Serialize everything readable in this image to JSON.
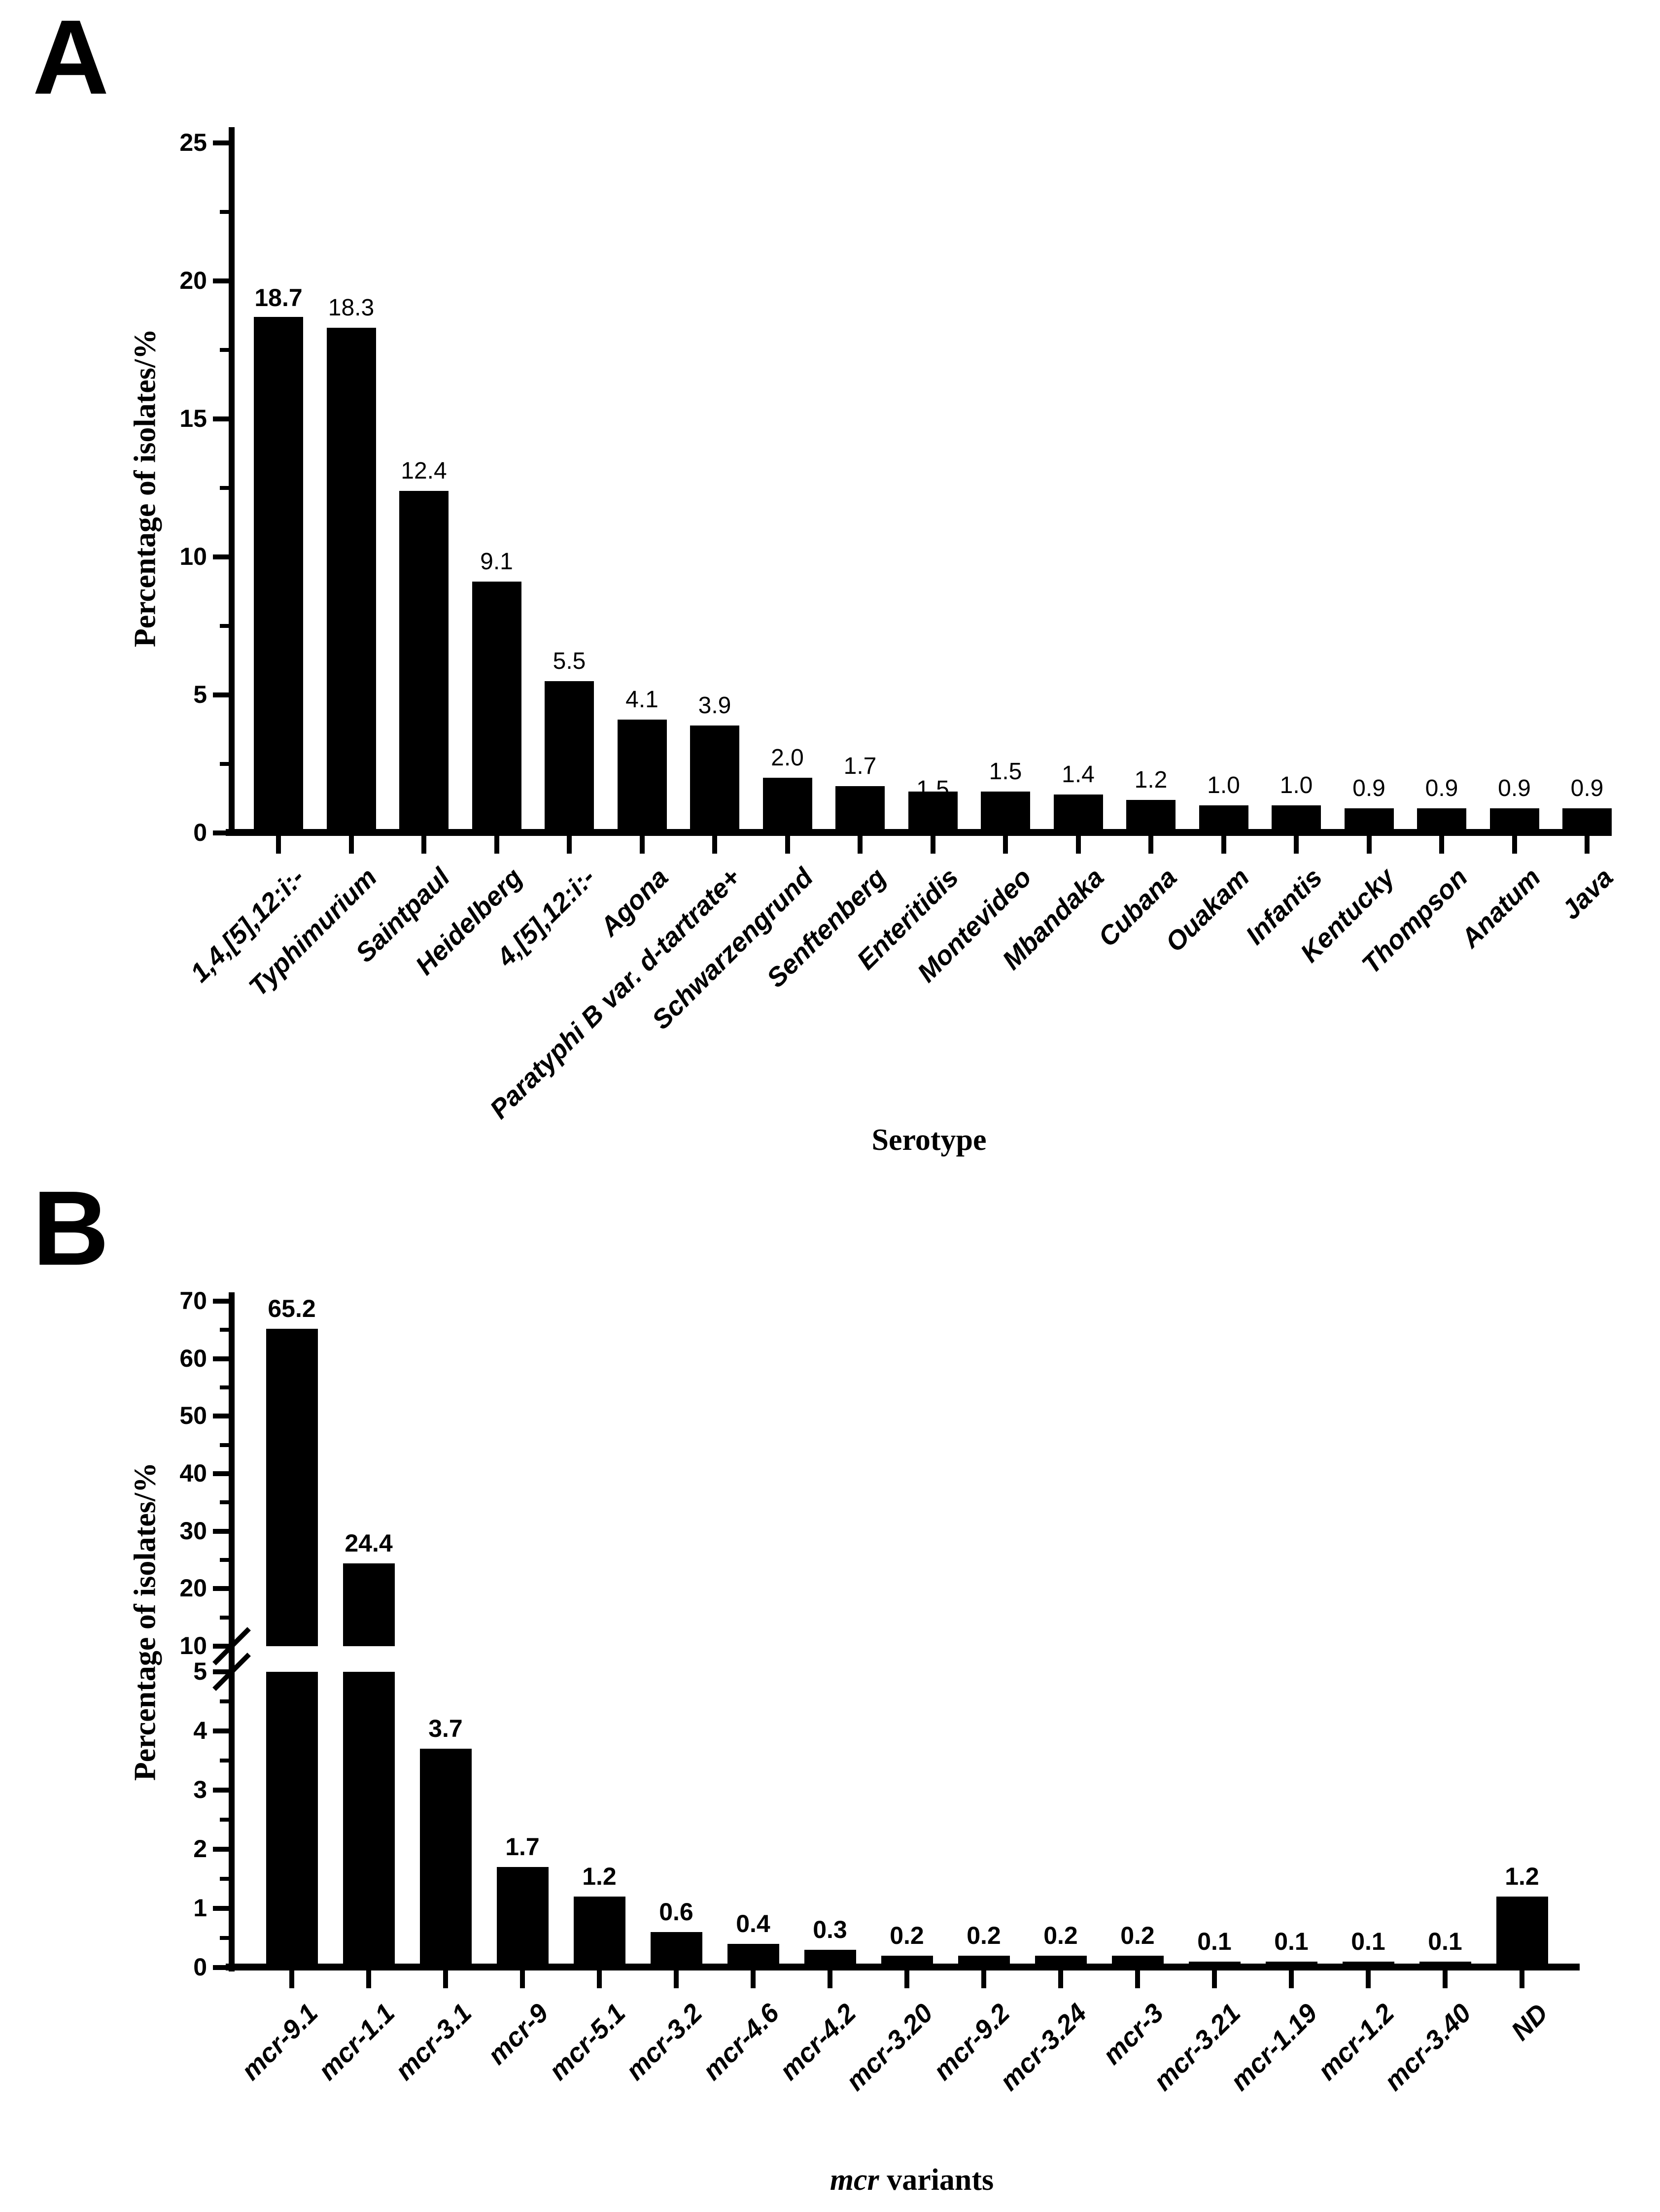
{
  "figure": {
    "background": "#ffffff",
    "bar_color": "#000000",
    "axis_color": "#000000",
    "text_color": "#000000"
  },
  "chart_data": [
    {
      "type": "bar",
      "panel_label": "A",
      "xlabel": "Serotype",
      "ylabel": "Percentage of isolates/%",
      "ylim": [
        0,
        25
      ],
      "yticks": [
        0,
        5,
        10,
        15,
        20,
        25
      ],
      "minor_tick_step": 2.5,
      "grid": false,
      "legend": false,
      "bar_color": "#000000",
      "categories": [
        "1,4,[5],12:i:-",
        "Typhimurium",
        "Saintpaul",
        "Heidelberg",
        "4,[5],12:i:-",
        "Agona",
        "Paratyphi B var. d-tartrate+",
        "Schwarzengrund",
        "Senftenberg",
        "Enteritidis",
        "Montevideo",
        "Mbandaka",
        "Cubana",
        "Ouakam",
        "Infantis",
        "Kentucky",
        "Thompson",
        "Anatum",
        "Java"
      ],
      "values": [
        18.7,
        18.3,
        12.4,
        9.1,
        5.5,
        4.1,
        3.9,
        2.0,
        1.7,
        1.5,
        1.5,
        1.4,
        1.2,
        1.0,
        1.0,
        0.9,
        0.9,
        0.9,
        0.9
      ],
      "value_labels": [
        "18.7",
        "18.3",
        "12.4",
        "9.1",
        "5.5",
        "4.1",
        "3.9",
        "2.0",
        "1.7",
        "1.5",
        "1.5",
        "1.4",
        "1.2",
        "1.0",
        "1.0",
        "0.9",
        "0.9",
        "0.9",
        "0.9"
      ],
      "bold_value_indices": [
        0
      ],
      "overlapped_value_indices": [
        9
      ]
    },
    {
      "type": "bar",
      "panel_label": "B",
      "xlabel_italic": "mcr",
      "xlabel_rest": " variants",
      "ylabel": "Percentage of isolates/%",
      "axis_break": {
        "lower_ylim": [
          0,
          5
        ],
        "upper_ylim": [
          10,
          70
        ],
        "lower_yticks": [
          0,
          1,
          2,
          3,
          4,
          5
        ],
        "upper_yticks": [
          10,
          20,
          30,
          40,
          50,
          60,
          70
        ],
        "lower_minor_step": 0.5,
        "upper_minor_step": 5
      },
      "grid": false,
      "legend": false,
      "bar_color": "#000000",
      "categories": [
        "mcr-9.1",
        "mcr-1.1",
        "mcr-3.1",
        "mcr-9",
        "mcr-5.1",
        "mcr-3.2",
        "mcr-4.6",
        "mcr-4.2",
        "mcr-3.20",
        "mcr-9.2",
        "mcr-3.24",
        "mcr-3",
        "mcr-3.21",
        "mcr-1.19",
        "mcr-1.2",
        "mcr-3.40",
        "ND"
      ],
      "values": [
        65.2,
        24.4,
        3.7,
        1.7,
        1.2,
        0.6,
        0.4,
        0.3,
        0.2,
        0.2,
        0.2,
        0.2,
        0.1,
        0.1,
        0.1,
        0.1,
        1.2
      ],
      "value_labels": [
        "65.2",
        "24.4",
        "3.7",
        "1.7",
        "1.2",
        "0.6",
        "0.4",
        "0.3",
        "0.2",
        "0.2",
        "0.2",
        "0.2",
        "0.1",
        "0.1",
        "0.1",
        "0.1",
        "1.2"
      ]
    }
  ]
}
